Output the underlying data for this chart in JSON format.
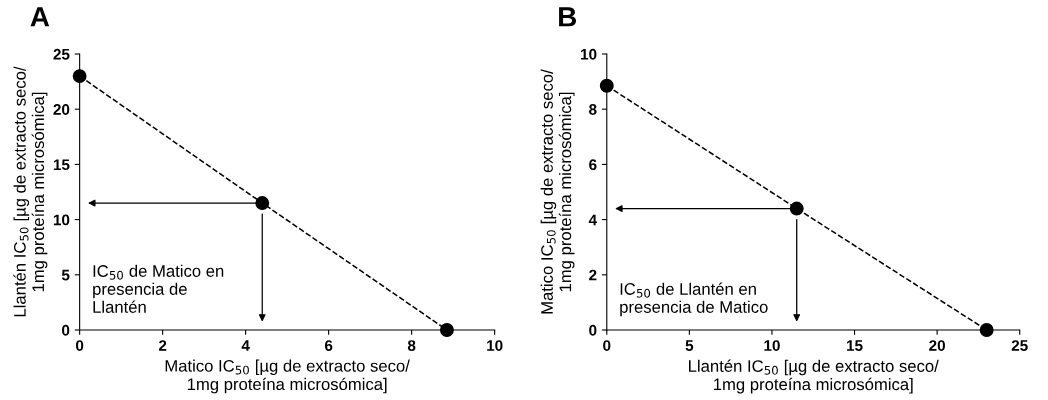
{
  "chart_data": [
    {
      "type": "line",
      "title": "A",
      "xlabel": "Matico IC$_{50}$ [µg de extracto seco/\n1mg proteína microsómica]",
      "ylabel": "Llantén IC$_{50}$ [µg de extracto seco/\n1mg proteína microsómica]",
      "xlim": [
        0,
        10
      ],
      "xticks": [
        0,
        2,
        4,
        6,
        8,
        10
      ],
      "ylim": [
        0,
        25
      ],
      "yticks": [
        0,
        5,
        10,
        15,
        20,
        25
      ],
      "grid": false,
      "legend": false,
      "marker": "circle",
      "line_style": "dashed",
      "series": [
        {
          "color": "#000000",
          "x": [
            0,
            4.4,
            8.85
          ],
          "values": [
            23,
            11.5,
            0
          ]
        }
      ],
      "annotations": [
        "IC$_{50}$ de Matico en\npresencia de\nLlantén"
      ]
    },
    {
      "type": "line",
      "title": "B",
      "xlabel": "Llantén IC$_{50}$ [µg de extracto seco/\n1mg proteína microsómica]",
      "ylabel": "Matico IC$_{50}$ [µg de extracto seco/\n1mg proteína microsómica]",
      "xlim": [
        0,
        25
      ],
      "xticks": [
        0,
        5,
        10,
        15,
        20,
        25
      ],
      "ylim": [
        0,
        10
      ],
      "yticks": [
        0,
        2,
        4,
        6,
        8,
        10
      ],
      "grid": false,
      "legend": false,
      "marker": "circle",
      "line_style": "dashed",
      "series": [
        {
          "color": "#000000",
          "x": [
            0,
            11.5,
            23
          ],
          "values": [
            8.85,
            4.4,
            0
          ]
        }
      ],
      "annotations": [
        "IC$_{50}$ de Llantén en\npresencia de Matico"
      ]
    }
  ]
}
